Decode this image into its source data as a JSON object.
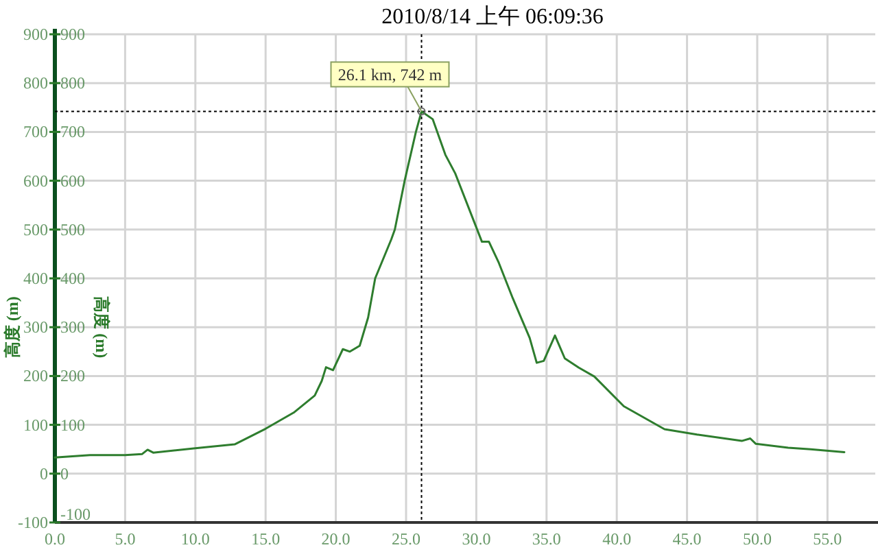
{
  "chart_data": {
    "type": "line",
    "title": "2010/8/14 上午 06:09:36",
    "ylabel": "高度 (m)",
    "y2label": "高度 (m)",
    "annotations": [
      {
        "text": "26.1 km, 742 m",
        "x": 26.1,
        "y": 742
      }
    ],
    "xlim": [
      0,
      58.4
    ],
    "xticks": [
      {
        "value": 0,
        "label": "0.0"
      },
      {
        "value": 5,
        "label": "5.0"
      },
      {
        "value": 10,
        "label": "10.0"
      },
      {
        "value": 15,
        "label": "15.0"
      },
      {
        "value": 20,
        "label": "20.0"
      },
      {
        "value": 25,
        "label": "25.0"
      },
      {
        "value": 30,
        "label": "30.0"
      },
      {
        "value": 35,
        "label": "35.0"
      },
      {
        "value": 40,
        "label": "40.0"
      },
      {
        "value": 45,
        "label": "45.0"
      },
      {
        "value": 50,
        "label": "50.0"
      },
      {
        "value": 55,
        "label": "55.0"
      }
    ],
    "ylim": [
      -100,
      900
    ],
    "yticks": [
      -100,
      0,
      100,
      200,
      300,
      400,
      500,
      600,
      700,
      800,
      900
    ],
    "y2lim": [
      -100,
      900
    ],
    "y2ticks": [
      -100,
      0,
      100,
      200,
      300,
      400,
      500,
      600,
      700,
      800,
      900
    ],
    "grid": true,
    "ref_lines": [
      {
        "axis": "x",
        "value": 26.1,
        "color": "#000000",
        "line_style": "dotted"
      },
      {
        "axis": "y",
        "value": 742,
        "color": "#000000",
        "line_style": "dotted"
      }
    ],
    "series": [
      {
        "color": "#2e7d2e",
        "x": [
          0,
          2.5,
          5,
          6.2,
          6.6,
          7,
          10,
          12.8,
          15,
          17,
          18.5,
          19,
          19.3,
          19.8,
          20.5,
          21,
          21.7,
          22.3,
          22.8,
          23.95,
          24.2,
          24.9,
          25.7,
          26.1,
          26.9,
          27.8,
          28.5,
          30.4,
          30.9,
          31.6,
          32.6,
          33.8,
          34.3,
          34.8,
          35.6,
          36.3,
          37.3,
          38.4,
          40.5,
          43.4,
          45.7,
          48.9,
          49.5,
          49.9,
          52.2,
          53.8,
          56.2
        ],
        "values": [
          33,
          38,
          38,
          40,
          49,
          43,
          52,
          60,
          92,
          125,
          160,
          190,
          218,
          212,
          255,
          250,
          262,
          320,
          400,
          480,
          500,
          600,
          700,
          742,
          726,
          653,
          615,
          475,
          475,
          432,
          359,
          278,
          227,
          231,
          283,
          236,
          217,
          199,
          138,
          91,
          80,
          67,
          72,
          61,
          53,
          50,
          44
        ]
      }
    ]
  }
}
